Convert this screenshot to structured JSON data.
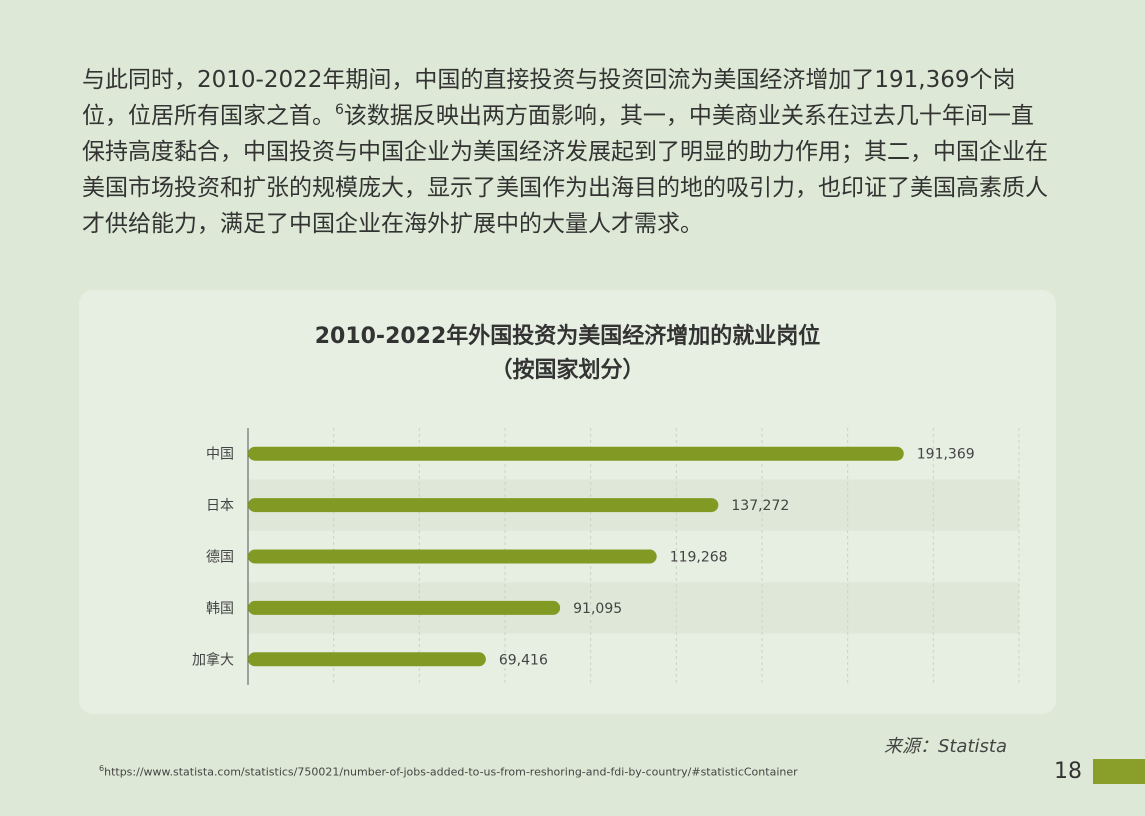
{
  "intro": {
    "part1": "与此同时，2010-2022年期间，中国的直接投资与投资回流为美国经济增加了191,369个岗位，位居所有国家之首。",
    "footnote_ref": "6",
    "part2": "该数据反映出两方面影响，其一，中美商业关系在过去几十年间一直保持高度黏合，中国投资与中国企业为美国经济发展起到了明显的助力作用；其二，中国企业在美国市场投资和扩张的规模庞大，显示了美国作为出海目的地的吸引力，也印证了美国高素质人才供给能力，满足了中国企业在海外扩展中的大量人才需求。"
  },
  "chart_data": {
    "type": "bar",
    "orientation": "horizontal",
    "title": "2010-2022年外国投资为美国经济增加的就业岗位",
    "subtitle": "（按国家划分）",
    "categories": [
      "中国",
      "日本",
      "德国",
      "韩国",
      "加拿大"
    ],
    "values": [
      191369,
      137272,
      119268,
      91095,
      69416
    ],
    "value_labels": [
      "191,369",
      "137,272",
      "119,268",
      "91,095",
      "69,416"
    ],
    "xlim": [
      0,
      225000
    ],
    "grid": true,
    "bar_color": "#829a24"
  },
  "source": {
    "label": "来源：",
    "value": "Statista"
  },
  "footnote": {
    "number": "6",
    "text": "https://www.statista.com/statistics/750021/number-of-jobs-added-to-us-from-reshoring-and-fdi-by-country/#statisticContainer"
  },
  "page_number": "18",
  "colors": {
    "background": "#dde9d6",
    "card": "#e7efe2",
    "accent": "#8a9e2a"
  }
}
